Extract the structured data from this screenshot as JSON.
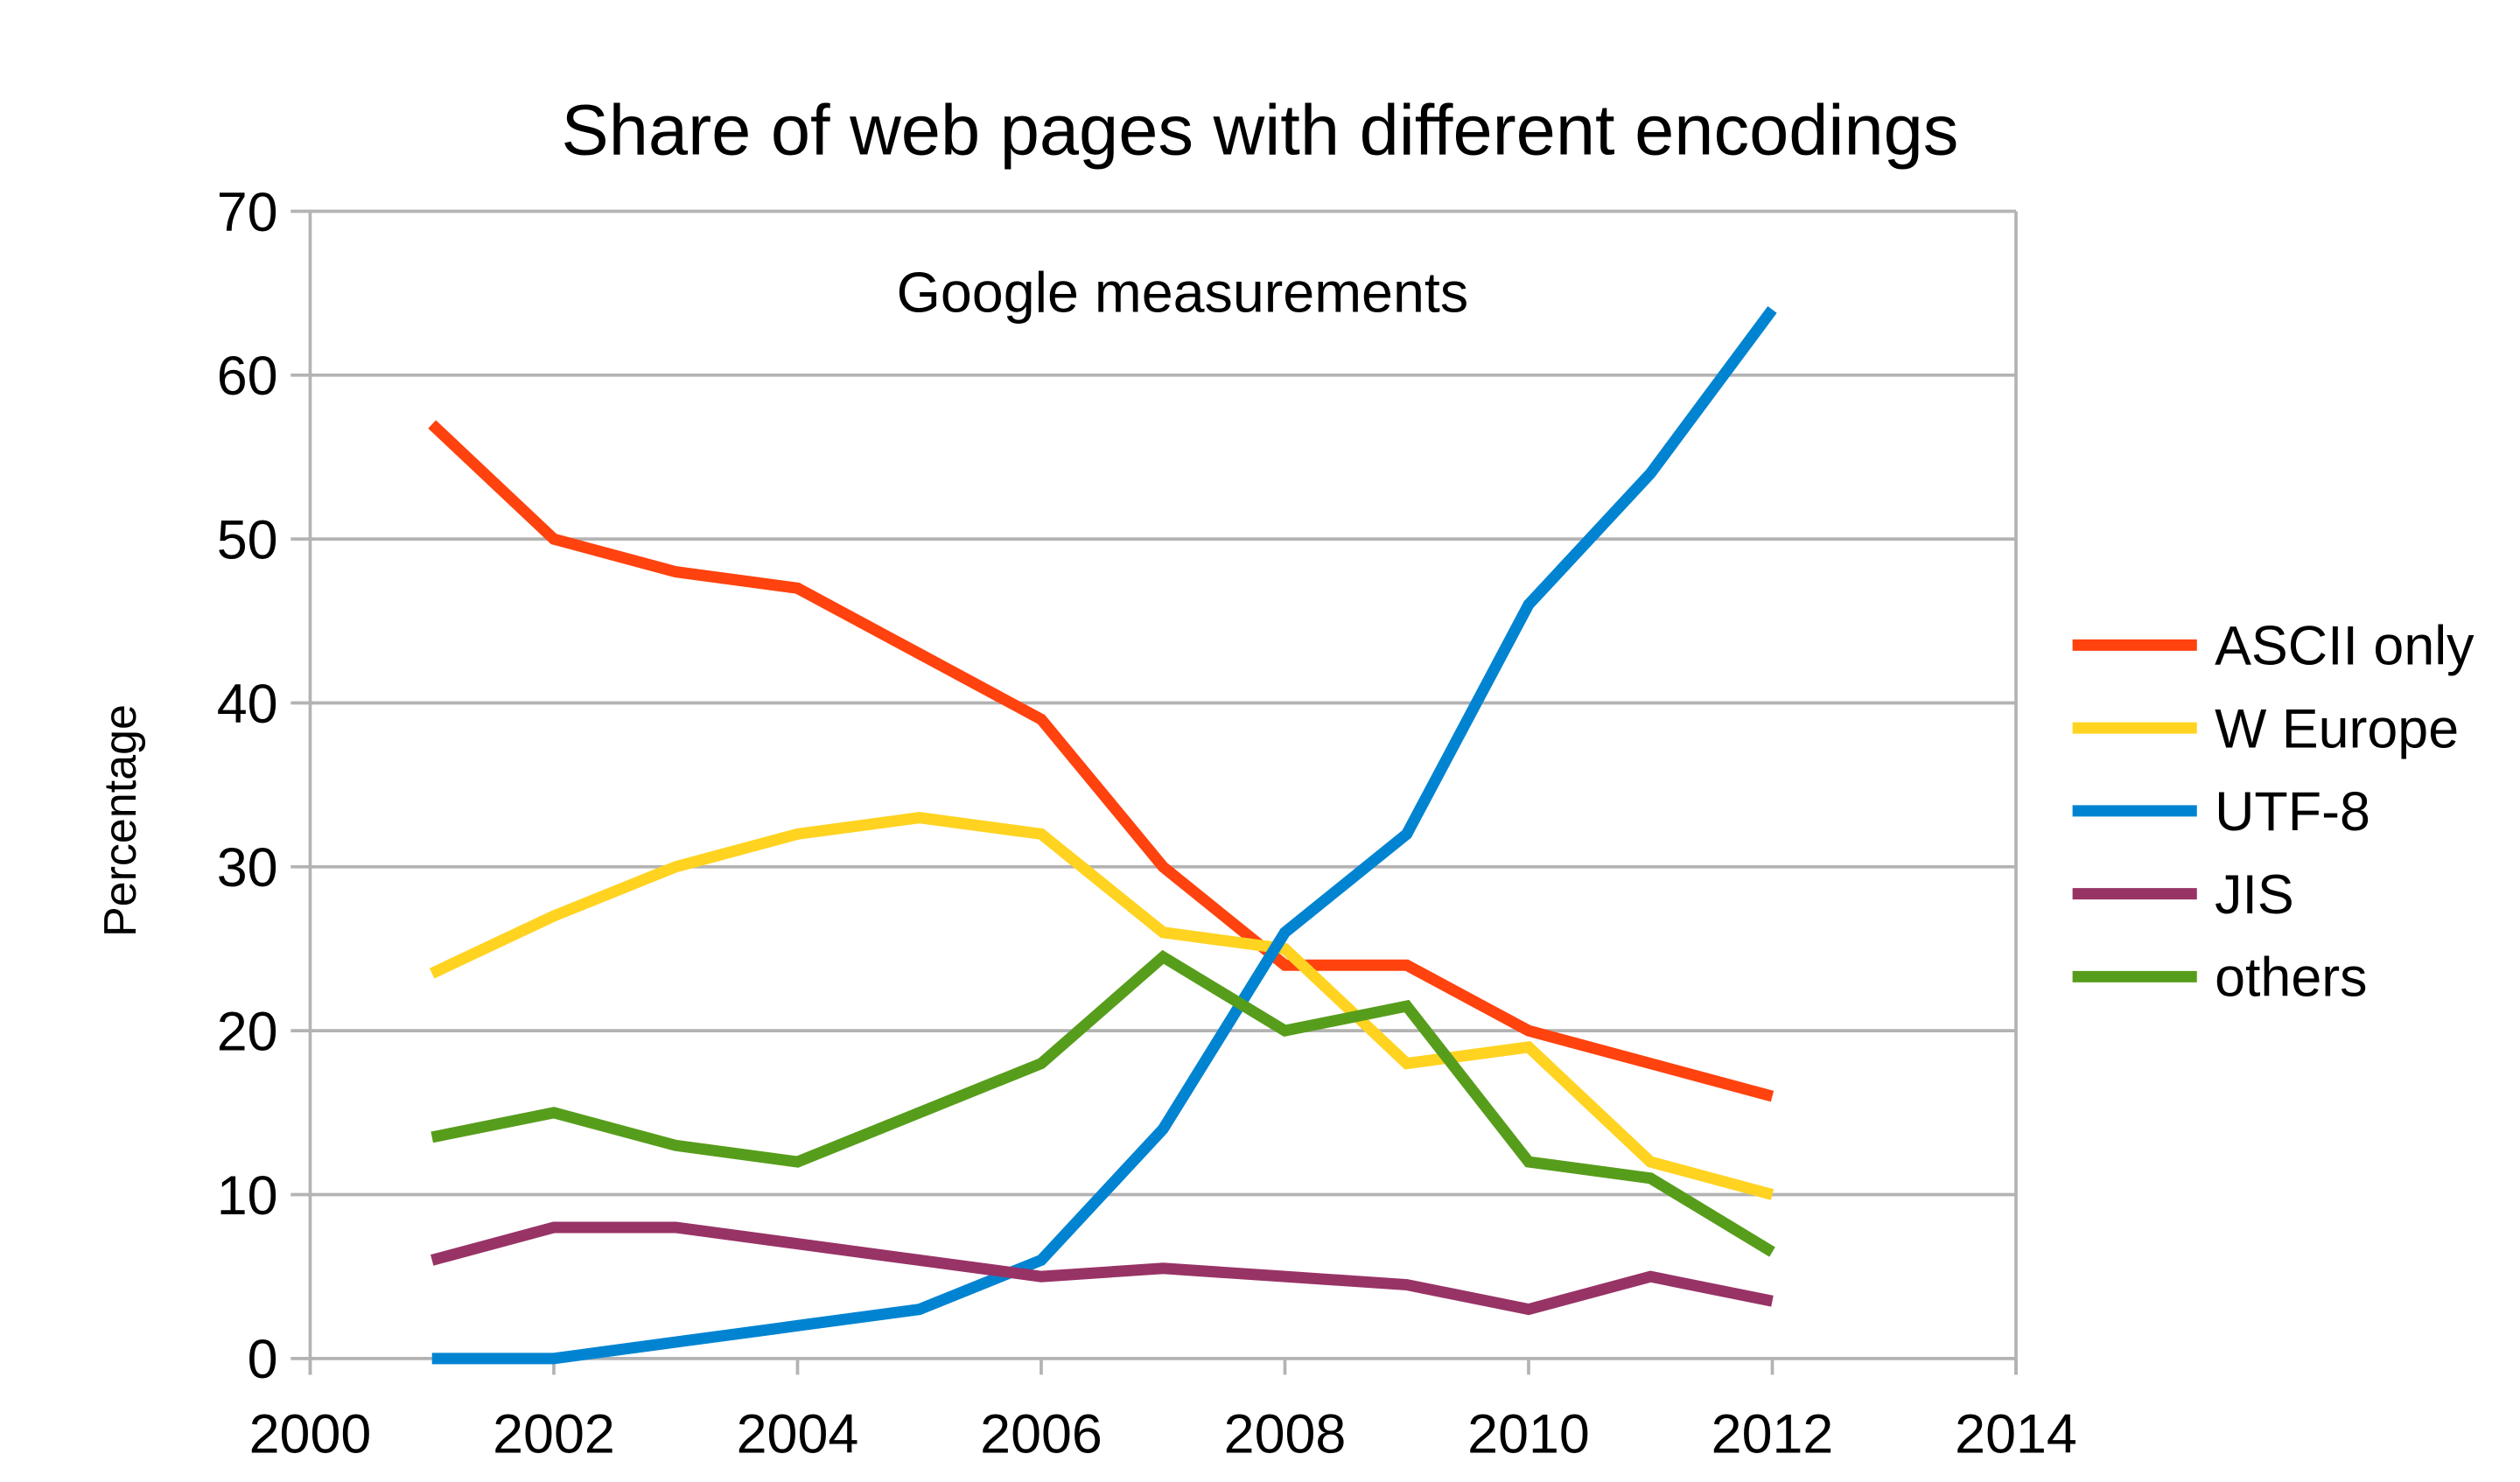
{
  "chart_data": {
    "type": "line",
    "title": "Share of web pages with different encodings",
    "subtitle": "Google measurements",
    "xlabel": "",
    "ylabel": "Percentage",
    "xlim": [
      2000,
      2014
    ],
    "ylim": [
      0,
      70
    ],
    "xticks": [
      2000,
      2002,
      2004,
      2006,
      2008,
      2010,
      2012,
      2014
    ],
    "yticks": [
      0,
      10,
      20,
      30,
      40,
      50,
      60,
      70
    ],
    "grid": "horizontal",
    "legend": "right",
    "x": [
      2001,
      2002,
      2003,
      2004,
      2005,
      2006,
      2007,
      2008,
      2009,
      2010,
      2011,
      2012
    ],
    "series": [
      {
        "name": "ASCII only",
        "color": "#ff420e",
        "values": [
          57,
          50,
          48,
          47,
          43,
          39,
          30,
          24,
          24,
          20,
          18,
          16
        ]
      },
      {
        "name": "W Europe",
        "color": "#ffd320",
        "values": [
          23.5,
          27,
          30,
          32,
          33,
          32,
          26,
          25,
          18,
          19,
          12,
          10
        ]
      },
      {
        "name": "UTF-8",
        "color": "#0084d1",
        "values": [
          0,
          0,
          1,
          2,
          3,
          6,
          14,
          26,
          32,
          46,
          54,
          64
        ]
      },
      {
        "name": "JIS",
        "color": "#983366",
        "values": [
          6,
          8,
          8,
          7,
          6,
          5,
          5.5,
          5,
          4.5,
          3,
          5,
          3.5
        ]
      },
      {
        "name": "others",
        "color": "#579d1c",
        "values": [
          13.5,
          15,
          13,
          12,
          15,
          18,
          24.5,
          20,
          21.5,
          12,
          11,
          6.5
        ]
      }
    ]
  }
}
